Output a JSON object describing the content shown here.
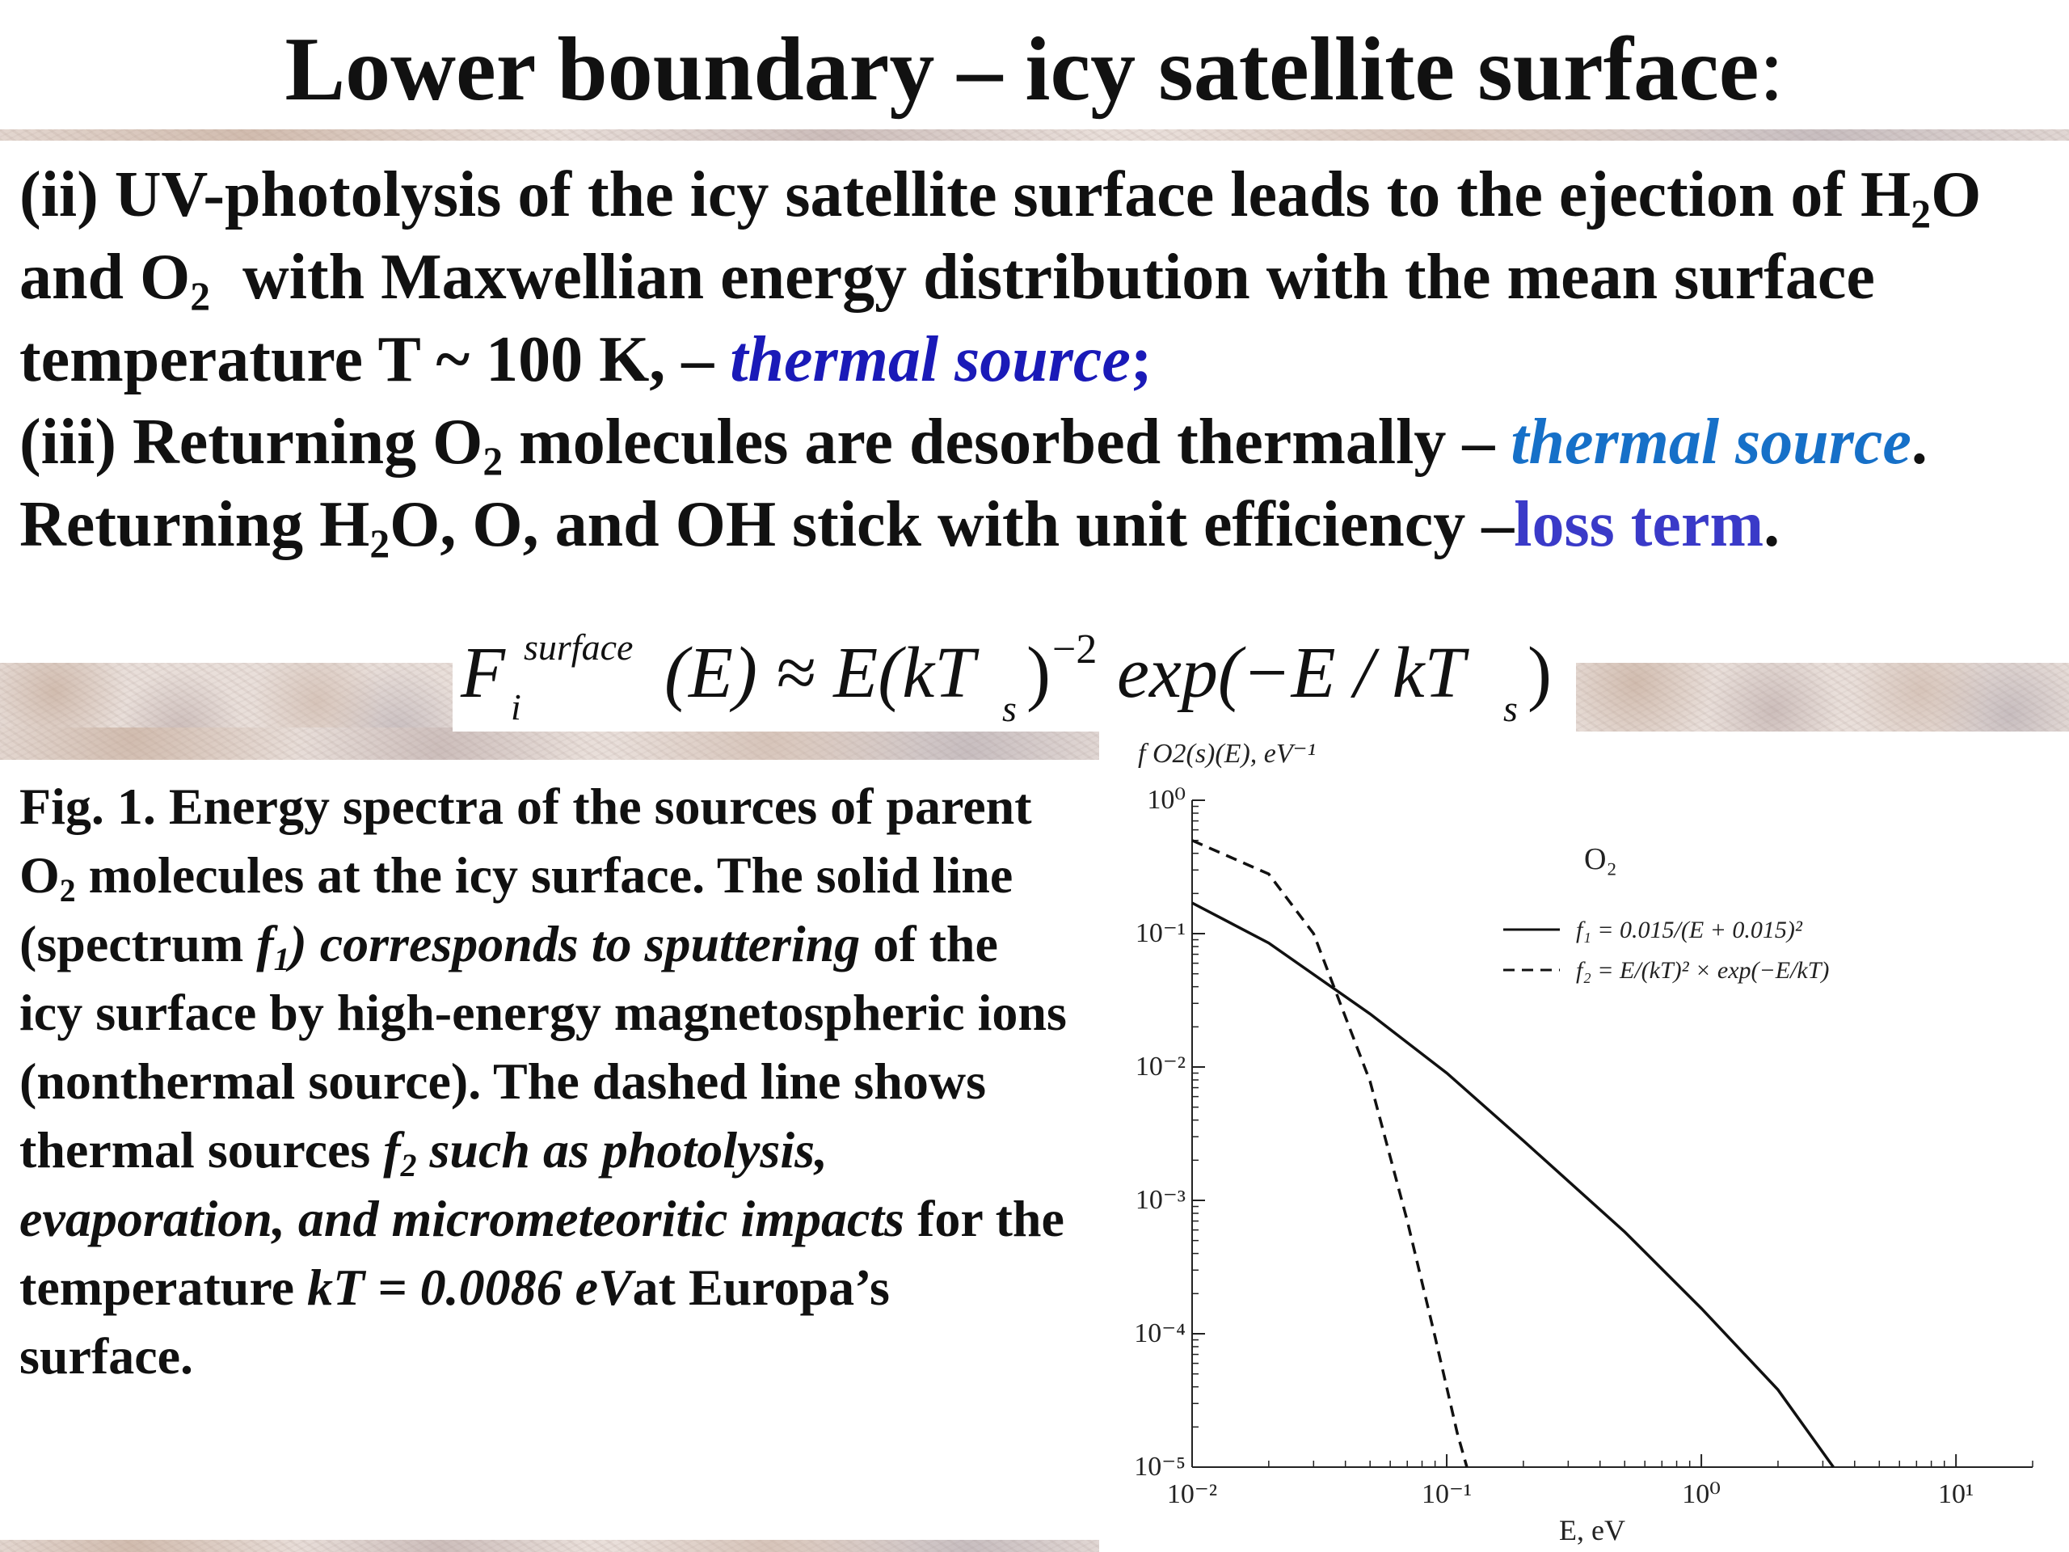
{
  "slide": {
    "title": "Lower boundary – icy satellite surface",
    "title_colon": ":",
    "para2": {
      "lead": "(ii) UV-photolysis of the icy satellite surface leads to the ejection of H",
      "sub1": "2",
      "t2": "O and O",
      "sub2": "2",
      "t3": "  with Maxwellian energy distribution with the mean surface temperature T ~ 100 K, – ",
      "highlight": "thermal source",
      "end": ";"
    },
    "para3": {
      "lead": "(iii) Returning O",
      "sub1": "2",
      "t2": " molecules are desorbed thermally – ",
      "highlight": "thermal source",
      "t3": ".  Returning H",
      "sub2": "2",
      "t4": "O, O, and OH stick with unit efficiency –",
      "loss": "loss term",
      "end": "."
    },
    "equation": {
      "lhs": "F",
      "sup": "surface",
      "sub": "i",
      "arg": "(E) ≈ E(kT",
      "sub_s": "s",
      "close": ")",
      "exp_power": "−2",
      "exp_text": " exp(−E / kT",
      "sub_s2": "s",
      "end": ")"
    },
    "caption": {
      "a": "Fig. 1. Energy spectra of the sources of parent O",
      "a_sub": "2",
      "b": " molecules at the icy surface. The solid line (spectrum ",
      "f1": "f",
      "f1_sub": "1",
      "c": ") corresponds to sputtering",
      "d": " of the icy surface by high-energy magnetospheric ions (nonthermal source). The dashed line shows thermal sources ",
      "f2": "f",
      "f2_sub": "2",
      "e": " such as photolysis, evaporation, and micrometeoritic impacts",
      "g": " for the temperature ",
      "kt": "kT = 0.0086 eV",
      "h": "at Europa’s surface."
    }
  },
  "chart_data": {
    "type": "line",
    "title": "",
    "ylabel": "f O2(s)(E), eV⁻¹",
    "xlabel": "E, eV",
    "xscale": "log",
    "yscale": "log",
    "xlim": [
      0.01,
      20
    ],
    "ylim": [
      1e-05,
      1
    ],
    "x_ticks": [
      0.01,
      0.1,
      1,
      10
    ],
    "x_tick_labels": [
      "10⁻²",
      "10⁻¹",
      "10⁰",
      "10¹"
    ],
    "y_ticks": [
      1,
      0.1,
      0.01,
      0.001,
      0.0001,
      1e-05
    ],
    "y_tick_labels": [
      "10⁰",
      "10⁻¹",
      "10⁻²",
      "10⁻³",
      "10⁻⁴",
      "10⁻⁵"
    ],
    "legend_title": "O₂",
    "legend_position": "top-right",
    "series": [
      {
        "name": "f₁ = 0.015/(E + 0.015)²",
        "style": "solid",
        "x": [
          0.01,
          0.02,
          0.05,
          0.1,
          0.2,
          0.5,
          1,
          2,
          3.3
        ],
        "y": [
          0.17,
          0.085,
          0.025,
          0.009,
          0.0028,
          0.00058,
          0.000155,
          3.8e-05,
          1e-05
        ]
      },
      {
        "name": "f₂ = E/(kT)² × exp(−E/kT)",
        "style": "dashed",
        "x": [
          0.01,
          0.02,
          0.03,
          0.05,
          0.07,
          0.09,
          0.11,
          0.12
        ],
        "y": [
          0.5,
          0.28,
          0.1,
          0.0078,
          0.0007,
          9.5e-05,
          1.8e-05,
          1e-05
        ]
      }
    ]
  }
}
